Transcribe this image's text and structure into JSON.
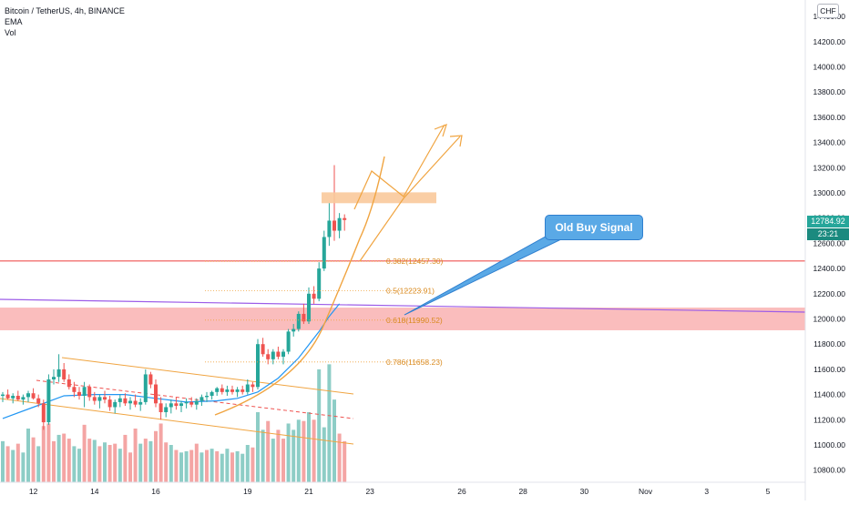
{
  "legend": {
    "symbol": "Bitcoin / TetherUS, 4h, BINANCE",
    "ema": "EMA",
    "vol": "Vol"
  },
  "currency": "CHF",
  "last_price": "12784.92",
  "countdown": "23:21",
  "callout": {
    "text": "Old Buy Signal"
  },
  "colors": {
    "up": "#26a69a",
    "down": "#ef5350",
    "vol_up": "#8dcdc6",
    "vol_down": "#f4a5a4",
    "fib": "#f0a440",
    "ema": "#2196f3",
    "resistance": "#ef5350",
    "zone": "#f8a7a7",
    "trend_purple": "#9c5ce8",
    "target_zone": "#f9c99b",
    "callout": "#5aa9e6"
  },
  "chart_data": {
    "type": "candlestick",
    "y_axis": {
      "range": [
        10760,
        14480
      ],
      "ticks": [
        "14400.00",
        "14200.00",
        "14000.00",
        "13800.00",
        "13600.00",
        "13400.00",
        "13200.00",
        "13000.00",
        "12800.00",
        "12600.00",
        "12400.00",
        "12200.00",
        "12000.00",
        "11800.00",
        "11600.00",
        "11400.00",
        "11200.00",
        "11000.00",
        "10800.00"
      ],
      "tick_values": [
        14400,
        14200,
        14000,
        13800,
        13600,
        13400,
        13200,
        13000,
        12800,
        12600,
        12400,
        12200,
        12000,
        11800,
        11600,
        11400,
        11200,
        11000,
        10800
      ]
    },
    "x_axis": {
      "ticks": [
        "12",
        "14",
        "16",
        "19",
        "21",
        "23",
        "26",
        "28",
        "30",
        "Nov",
        "3",
        "5"
      ],
      "tick_bars": [
        6,
        18,
        30,
        48,
        60,
        72,
        90,
        102,
        114,
        126,
        138,
        150
      ]
    },
    "candles": [
      [
        11390,
        11420,
        11340,
        11400
      ],
      [
        11400,
        11440,
        11360,
        11370
      ],
      [
        11370,
        11410,
        11330,
        11390
      ],
      [
        11390,
        11430,
        11350,
        11360
      ],
      [
        11360,
        11400,
        11320,
        11380
      ],
      [
        11380,
        11430,
        11340,
        11410
      ],
      [
        11410,
        11450,
        11360,
        11370
      ],
      [
        11370,
        11400,
        11300,
        11330
      ],
      [
        11330,
        11360,
        11120,
        11180
      ],
      [
        11180,
        11560,
        11160,
        11520
      ],
      [
        11520,
        11600,
        11480,
        11540
      ],
      [
        11540,
        11720,
        11500,
        11600
      ],
      [
        11600,
        11650,
        11500,
        11520
      ],
      [
        11520,
        11560,
        11440,
        11460
      ],
      [
        11460,
        11500,
        11380,
        11420
      ],
      [
        11420,
        11460,
        11360,
        11390
      ],
      [
        11390,
        11500,
        11300,
        11460
      ],
      [
        11460,
        11480,
        11350,
        11380
      ],
      [
        11380,
        11420,
        11320,
        11350
      ],
      [
        11350,
        11400,
        11290,
        11380
      ],
      [
        11380,
        11430,
        11330,
        11360
      ],
      [
        11360,
        11390,
        11270,
        11300
      ],
      [
        11300,
        11360,
        11250,
        11340
      ],
      [
        11340,
        11400,
        11300,
        11370
      ],
      [
        11370,
        11410,
        11310,
        11330
      ],
      [
        11330,
        11380,
        11280,
        11350
      ],
      [
        11350,
        11400,
        11300,
        11320
      ],
      [
        11320,
        11370,
        11270,
        11340
      ],
      [
        11340,
        11600,
        11320,
        11560
      ],
      [
        11560,
        11580,
        11450,
        11480
      ],
      [
        11480,
        11520,
        11300,
        11330
      ],
      [
        11330,
        11380,
        11200,
        11260
      ],
      [
        11260,
        11330,
        11220,
        11300
      ],
      [
        11300,
        11360,
        11250,
        11330
      ],
      [
        11330,
        11380,
        11280,
        11310
      ],
      [
        11310,
        11350,
        11260,
        11330
      ],
      [
        11330,
        11370,
        11290,
        11340
      ],
      [
        11340,
        11380,
        11300,
        11320
      ],
      [
        11320,
        11370,
        11280,
        11350
      ],
      [
        11350,
        11400,
        11310,
        11380
      ],
      [
        11380,
        11420,
        11340,
        11390
      ],
      [
        11390,
        11430,
        11360,
        11420
      ],
      [
        11420,
        11460,
        11390,
        11450
      ],
      [
        11450,
        11480,
        11400,
        11420
      ],
      [
        11420,
        11470,
        11390,
        11440
      ],
      [
        11440,
        11470,
        11400,
        11420
      ],
      [
        11420,
        11460,
        11380,
        11440
      ],
      [
        11440,
        11470,
        11400,
        11420
      ],
      [
        11420,
        11520,
        11400,
        11480
      ],
      [
        11480,
        11500,
        11420,
        11460
      ],
      [
        11460,
        11840,
        11440,
        11800
      ],
      [
        11800,
        11850,
        11700,
        11720
      ],
      [
        11720,
        11760,
        11640,
        11680
      ],
      [
        11680,
        11760,
        11640,
        11740
      ],
      [
        11740,
        11780,
        11680,
        11700
      ],
      [
        11700,
        11760,
        11640,
        11740
      ],
      [
        11740,
        11920,
        11720,
        11900
      ],
      [
        11900,
        11960,
        11860,
        11920
      ],
      [
        11920,
        12060,
        11900,
        12040
      ],
      [
        12040,
        12120,
        11960,
        11980
      ],
      [
        11980,
        12250,
        11960,
        12200
      ],
      [
        12200,
        12260,
        12120,
        12160
      ],
      [
        12160,
        12450,
        12140,
        12400
      ],
      [
        12400,
        12700,
        12380,
        12650
      ],
      [
        12650,
        12920,
        12580,
        12780
      ],
      [
        12780,
        13220,
        12620,
        12700
      ],
      [
        12700,
        12840,
        12640,
        12800
      ],
      [
        12800,
        12830,
        12700,
        12785
      ]
    ],
    "volumes": [
      [
        11030,
        "up"
      ],
      [
        10990,
        "down"
      ],
      [
        10960,
        "up"
      ],
      [
        11010,
        "down"
      ],
      [
        10940,
        "up"
      ],
      [
        11130,
        "up"
      ],
      [
        11060,
        "down"
      ],
      [
        10990,
        "up"
      ],
      [
        11150,
        "down"
      ],
      [
        11170,
        "down"
      ],
      [
        11030,
        "down"
      ],
      [
        11080,
        "up"
      ],
      [
        11090,
        "down"
      ],
      [
        11050,
        "down"
      ],
      [
        10990,
        "up"
      ],
      [
        10970,
        "up"
      ],
      [
        11160,
        "down"
      ],
      [
        11050,
        "down"
      ],
      [
        11040,
        "up"
      ],
      [
        10990,
        "down"
      ],
      [
        11020,
        "up"
      ],
      [
        11000,
        "down"
      ],
      [
        11010,
        "down"
      ],
      [
        10970,
        "up"
      ],
      [
        11080,
        "down"
      ],
      [
        10940,
        "down"
      ],
      [
        11130,
        "down"
      ],
      [
        11010,
        "up"
      ],
      [
        11050,
        "down"
      ],
      [
        11030,
        "up"
      ],
      [
        11110,
        "down"
      ],
      [
        11170,
        "down"
      ],
      [
        11020,
        "down"
      ],
      [
        11000,
        "up"
      ],
      [
        10960,
        "down"
      ],
      [
        10940,
        "up"
      ],
      [
        10950,
        "up"
      ],
      [
        10960,
        "down"
      ],
      [
        11010,
        "down"
      ],
      [
        10940,
        "up"
      ],
      [
        10960,
        "down"
      ],
      [
        10970,
        "up"
      ],
      [
        10950,
        "down"
      ],
      [
        10930,
        "up"
      ],
      [
        10970,
        "up"
      ],
      [
        10940,
        "down"
      ],
      [
        10950,
        "up"
      ],
      [
        10930,
        "up"
      ],
      [
        11000,
        "up"
      ],
      [
        10980,
        "down"
      ],
      [
        11260,
        "up"
      ],
      [
        11120,
        "up"
      ],
      [
        11190,
        "down"
      ],
      [
        11050,
        "up"
      ],
      [
        11120,
        "down"
      ],
      [
        11050,
        "down"
      ],
      [
        11170,
        "up"
      ],
      [
        11120,
        "up"
      ],
      [
        11200,
        "up"
      ],
      [
        11190,
        "down"
      ],
      [
        11260,
        "up"
      ],
      [
        11200,
        "down"
      ],
      [
        11600,
        "up"
      ],
      [
        11140,
        "up"
      ],
      [
        11640,
        "up"
      ],
      [
        11360,
        "up"
      ],
      [
        11090,
        "down"
      ],
      [
        11030,
        "down"
      ]
    ],
    "ema": [
      [
        0,
        11210
      ],
      [
        6,
        11300
      ],
      [
        12,
        11390
      ],
      [
        18,
        11400
      ],
      [
        24,
        11400
      ],
      [
        30,
        11370
      ],
      [
        36,
        11340
      ],
      [
        42,
        11350
      ],
      [
        46,
        11370
      ],
      [
        50,
        11420
      ],
      [
        54,
        11530
      ],
      [
        58,
        11690
      ],
      [
        62,
        11900
      ],
      [
        64,
        12020
      ],
      [
        66,
        12120
      ]
    ],
    "horizontal_lines": [
      {
        "name": "resistance",
        "value": 12460
      }
    ],
    "zones": [
      {
        "name": "demand",
        "from": 11910,
        "to": 12090
      },
      {
        "name": "target",
        "from": 12940,
        "to": 12990
      }
    ],
    "fib_levels": [
      {
        "label": "0.382(12457.30)",
        "value": 12457.3
      },
      {
        "label": "0.5(12223.91)",
        "value": 12223.91
      },
      {
        "label": "0.618(11990.52)",
        "value": 11990.52
      },
      {
        "label": "0.786(11658.23)",
        "value": 11658.23
      }
    ]
  }
}
